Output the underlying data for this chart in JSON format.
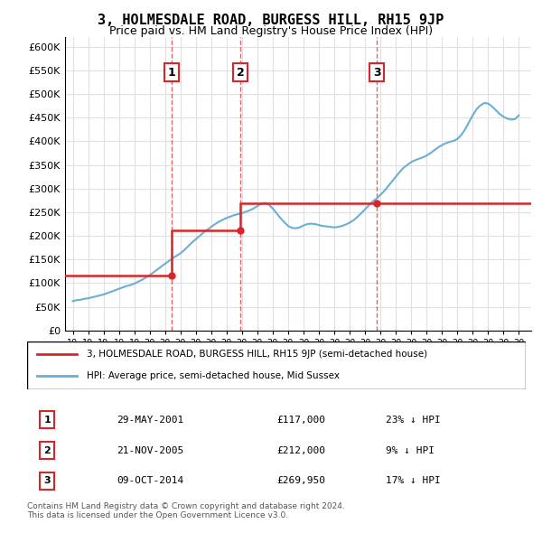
{
  "title": "3, HOLMESDALE ROAD, BURGESS HILL, RH15 9JP",
  "subtitle": "Price paid vs. HM Land Registry's House Price Index (HPI)",
  "legend_line1": "3, HOLMESDALE ROAD, BURGESS HILL, RH15 9JP (semi-detached house)",
  "legend_line2": "HPI: Average price, semi-detached house, Mid Sussex",
  "footer": "Contains HM Land Registry data © Crown copyright and database right 2024.\nThis data is licensed under the Open Government Licence v3.0.",
  "sales": [
    {
      "num": 1,
      "date": "29-MAY-2001",
      "price": 117000,
      "year": 2001.41,
      "label": "23% ↓ HPI"
    },
    {
      "num": 2,
      "date": "21-NOV-2005",
      "price": 212000,
      "year": 2005.89,
      "label": "9% ↓ HPI"
    },
    {
      "num": 3,
      "date": "09-OCT-2014",
      "price": 269950,
      "year": 2014.77,
      "label": "17% ↓ HPI"
    }
  ],
  "ylim": [
    0,
    620000
  ],
  "yticks": [
    0,
    50000,
    100000,
    150000,
    200000,
    250000,
    300000,
    350000,
    400000,
    450000,
    500000,
    550000,
    600000
  ],
  "ytick_labels": [
    "£0",
    "£50K",
    "£100K",
    "£150K",
    "£200K",
    "£250K",
    "£300K",
    "£350K",
    "£400K",
    "£450K",
    "£500K",
    "£550K",
    "£600K"
  ],
  "xlim_start": 1994.5,
  "xlim_end": 2024.8,
  "hpi_color": "#6baed6",
  "price_color": "#d62728",
  "vline_color": "#d62728",
  "grid_color": "#e0e0e0",
  "box_color": "#d62728",
  "hpi_years": [
    1995,
    1995.25,
    1995.5,
    1995.75,
    1996,
    1996.25,
    1996.5,
    1996.75,
    1997,
    1997.25,
    1997.5,
    1997.75,
    1998,
    1998.25,
    1998.5,
    1998.75,
    1999,
    1999.25,
    1999.5,
    1999.75,
    2000,
    2000.25,
    2000.5,
    2000.75,
    2001,
    2001.25,
    2001.5,
    2001.75,
    2002,
    2002.25,
    2002.5,
    2002.75,
    2003,
    2003.25,
    2003.5,
    2003.75,
    2004,
    2004.25,
    2004.5,
    2004.75,
    2005,
    2005.25,
    2005.5,
    2005.75,
    2006,
    2006.25,
    2006.5,
    2006.75,
    2007,
    2007.25,
    2007.5,
    2007.75,
    2008,
    2008.25,
    2008.5,
    2008.75,
    2009,
    2009.25,
    2009.5,
    2009.75,
    2010,
    2010.25,
    2010.5,
    2010.75,
    2011,
    2011.25,
    2011.5,
    2011.75,
    2012,
    2012.25,
    2012.5,
    2012.75,
    2013,
    2013.25,
    2013.5,
    2013.75,
    2014,
    2014.25,
    2014.5,
    2014.75,
    2015,
    2015.25,
    2015.5,
    2015.75,
    2016,
    2016.25,
    2016.5,
    2016.75,
    2017,
    2017.25,
    2017.5,
    2017.75,
    2018,
    2018.25,
    2018.5,
    2018.75,
    2019,
    2019.25,
    2019.5,
    2019.75,
    2020,
    2020.25,
    2020.5,
    2020.75,
    2021,
    2021.25,
    2021.5,
    2021.75,
    2022,
    2022.25,
    2022.5,
    2022.75,
    2023,
    2023.25,
    2023.5,
    2023.75,
    2024
  ],
  "hpi_values": [
    62000,
    64000,
    65000,
    67000,
    68000,
    70000,
    72000,
    74000,
    76000,
    79000,
    82000,
    85000,
    88000,
    91000,
    94000,
    96000,
    99000,
    103000,
    107000,
    112000,
    117000,
    123000,
    129000,
    135000,
    141000,
    147000,
    153000,
    158000,
    163000,
    170000,
    178000,
    186000,
    193000,
    200000,
    207000,
    213000,
    219000,
    225000,
    230000,
    234000,
    238000,
    241000,
    244000,
    246000,
    248000,
    251000,
    254000,
    258000,
    263000,
    268000,
    270000,
    266000,
    258000,
    248000,
    238000,
    229000,
    221000,
    217000,
    216000,
    218000,
    222000,
    225000,
    226000,
    225000,
    223000,
    221000,
    220000,
    219000,
    218000,
    219000,
    221000,
    224000,
    228000,
    233000,
    240000,
    248000,
    256000,
    265000,
    273000,
    279000,
    287000,
    295000,
    305000,
    315000,
    325000,
    335000,
    344000,
    350000,
    356000,
    360000,
    363000,
    366000,
    370000,
    375000,
    381000,
    387000,
    392000,
    396000,
    399000,
    401000,
    405000,
    413000,
    425000,
    440000,
    455000,
    468000,
    476000,
    481000,
    480000,
    474000,
    466000,
    458000,
    452000,
    448000,
    446000,
    447000,
    455000
  ],
  "price_segments": [
    {
      "x": [
        1994.5,
        2001.41
      ],
      "y": [
        117000,
        117000
      ]
    },
    {
      "x": [
        2001.41,
        2005.89
      ],
      "y": [
        212000,
        212000
      ]
    },
    {
      "x": [
        2005.89,
        2014.77
      ],
      "y": [
        269950,
        269950
      ]
    },
    {
      "x": [
        2014.77,
        2024.8
      ],
      "y": [
        269950,
        269950
      ]
    }
  ]
}
